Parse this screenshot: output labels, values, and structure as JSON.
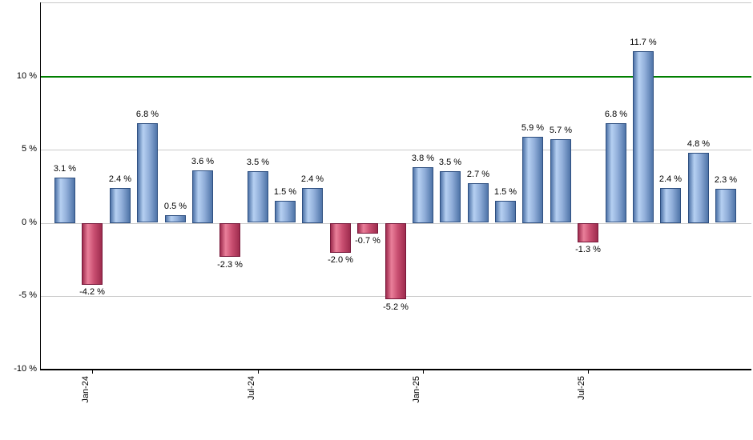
{
  "chart_data": {
    "type": "bar",
    "title": "",
    "xlabel": "",
    "ylabel": "",
    "values": [
      3.1,
      -4.2,
      2.4,
      6.8,
      0.5,
      3.6,
      -2.3,
      3.5,
      1.5,
      2.4,
      -2.0,
      -0.7,
      -5.2,
      3.8,
      3.5,
      2.7,
      1.5,
      5.9,
      5.7,
      -1.3,
      6.8,
      11.7,
      2.4,
      4.8,
      2.3
    ],
    "bar_labels": [
      "3.1 %",
      "-4.2 %",
      "2.4 %",
      "6.8 %",
      "0.5 %",
      "3.6 %",
      "-2.3 %",
      "3.5 %",
      "1.5 %",
      "2.4 %",
      "-2.0 %",
      "-0.7 %",
      "-5.2 %",
      "3.8 %",
      "3.5 %",
      "2.7 %",
      "1.5 %",
      "5.9 %",
      "5.7 %",
      "-1.3 %",
      "6.8 %",
      "11.7 %",
      "2.4 %",
      "4.8 %",
      "2.3 %"
    ],
    "x_ticks": [
      {
        "label": "Jan-24",
        "bar_index": 1
      },
      {
        "label": "Jul-24",
        "bar_index": 7
      },
      {
        "label": "Jan-25",
        "bar_index": 13
      },
      {
        "label": "Jul-25",
        "bar_index": 19
      }
    ],
    "y_ticks": [
      {
        "label": "10 %",
        "value": 10
      },
      {
        "label": "5 %",
        "value": 5
      },
      {
        "label": "0 %",
        "value": 0
      },
      {
        "label": "-5 %",
        "value": -5
      },
      {
        "label": "-10 %",
        "value": -10
      }
    ],
    "ylim": [
      -10.2,
      15.1
    ],
    "grid": true,
    "legend": false,
    "reference_line": {
      "value": 10,
      "color": "#007f00"
    },
    "colors": {
      "positive_light": "#b6d0f2",
      "positive_mid": "#8fadd8",
      "positive_dark": "#4f74a8",
      "positive_border": "#2e4f80",
      "negative_light": "#ea7f9a",
      "negative_mid": "#c94f71",
      "negative_dark": "#9e2c4e",
      "negative_border": "#77183a",
      "gridline": "#c9c9c9",
      "axis": "#000000",
      "label": "#000000",
      "background": "#ffffff"
    }
  }
}
